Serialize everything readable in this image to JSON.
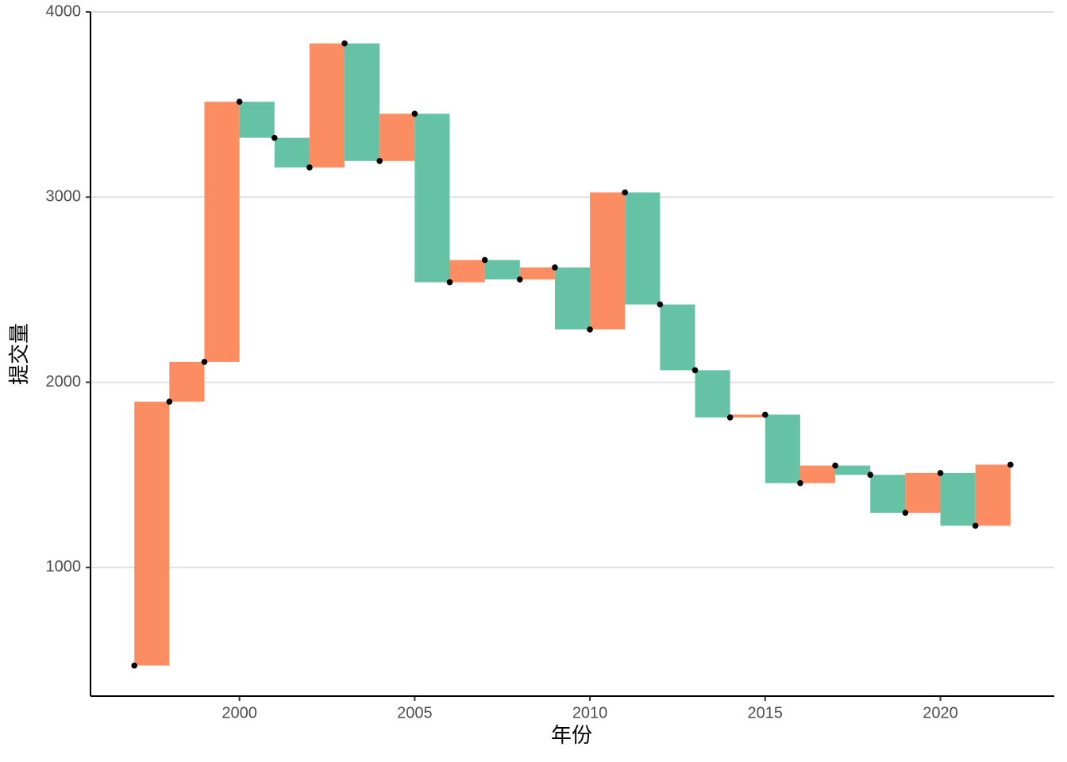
{
  "chart_data": {
    "type": "waterfall",
    "x_label": "年份",
    "y_label": "提交量",
    "x": [
      1997,
      1998,
      1999,
      2000,
      2001,
      2002,
      2003,
      2004,
      2005,
      2006,
      2007,
      2008,
      2009,
      2010,
      2011,
      2012,
      2013,
      2014,
      2015,
      2016,
      2017,
      2018,
      2019,
      2020,
      2021,
      2022
    ],
    "values": [
      470,
      1895,
      2110,
      3515,
      3320,
      3160,
      3830,
      3195,
      3450,
      2540,
      2660,
      2555,
      2620,
      2285,
      3025,
      2420,
      2065,
      1810,
      1825,
      1455,
      1550,
      1500,
      1295,
      1510,
      1225,
      1555
    ],
    "increase_color": "#fc8d62",
    "decrease_color": "#66c2a5",
    "point_color": "#000000",
    "xlim": [
      1995.75,
      2023.25
    ],
    "xticks": [
      2000,
      2005,
      2010,
      2015,
      2020
    ],
    "ylim": [
      305,
      4000
    ],
    "yticks": [
      1000,
      2000,
      3000,
      4000
    ],
    "grid": true
  }
}
